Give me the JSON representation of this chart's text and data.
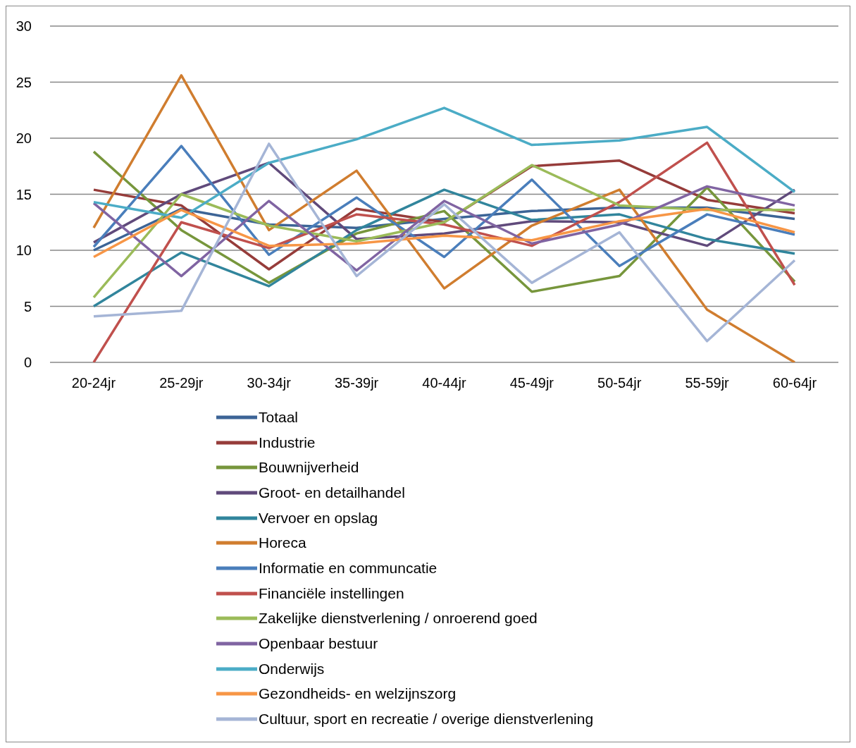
{
  "chart_data": {
    "type": "line",
    "categories": [
      "20-24jr",
      "25-29jr",
      "30-34jr",
      "35-39jr",
      "40-44jr",
      "45-49jr",
      "50-54jr",
      "55-59jr",
      "60-64jr"
    ],
    "series": [
      {
        "name": "Totaal",
        "color": "#3c6496",
        "values": [
          10,
          13.7,
          12.3,
          12,
          12.8,
          13.5,
          13.8,
          13.8,
          12.8
        ]
      },
      {
        "name": "Industrie",
        "color": "#963c3a",
        "values": [
          15.4,
          14,
          8.3,
          13.7,
          12.5,
          17.5,
          18,
          14.5,
          13.3
        ]
      },
      {
        "name": "Bouwnijverheid",
        "color": "#77963c",
        "values": [
          18.8,
          11.8,
          7.1,
          11.5,
          13.5,
          6.3,
          7.7,
          15.6,
          7.2
        ]
      },
      {
        "name": "Groot- en detailhandel",
        "color": "#604a7b",
        "values": [
          10.7,
          15,
          17.8,
          11,
          11.5,
          12.6,
          12.5,
          10.4,
          15.4
        ]
      },
      {
        "name": "Vervoer en opslag",
        "color": "#31859c",
        "values": [
          5,
          9.8,
          6.8,
          11.8,
          15.4,
          12.7,
          13.2,
          11,
          9.7
        ]
      },
      {
        "name": "Horeca",
        "color": "#d07d2f",
        "values": [
          12,
          25.6,
          11.8,
          17.1,
          6.6,
          12.2,
          15.4,
          4.7,
          0
        ]
      },
      {
        "name": "Informatie en communcatie",
        "color": "#4a7ebb",
        "values": [
          10.3,
          19.3,
          9.6,
          14.7,
          9.4,
          16.3,
          8.6,
          13.2,
          11.4
        ]
      },
      {
        "name": "Financiële instellingen",
        "color": "#c0504d",
        "values": [
          0,
          12.5,
          10.2,
          13.2,
          12.3,
          10.4,
          14.3,
          19.6,
          6.9
        ]
      },
      {
        "name": "Zakelijke dienstverlening / onroerend goed",
        "color": "#9bbb59",
        "values": [
          5.8,
          15,
          12.2,
          10.8,
          12.5,
          17.6,
          14,
          13.6,
          13.6
        ]
      },
      {
        "name": "Openbaar bestuur",
        "color": "#8064a2",
        "values": [
          14.2,
          7.7,
          14.4,
          8.2,
          14.4,
          10.6,
          12.3,
          15.7,
          14
        ]
      },
      {
        "name": "Onderwijs",
        "color": "#4bacc6",
        "values": [
          14.3,
          12.9,
          17.8,
          19.9,
          22.7,
          19.4,
          19.8,
          21,
          15.2
        ]
      },
      {
        "name": "Gezondheids- en welzijnszorg",
        "color": "#f79646",
        "values": [
          9.4,
          13.6,
          10.4,
          10.6,
          11.3,
          10.9,
          12.6,
          13.7,
          11.6
        ]
      },
      {
        "name": "Cultuur, sport en recreatie / overige dienstverlening",
        "color": "#a5b5d6",
        "values": [
          4.1,
          4.6,
          19.5,
          7.7,
          14.1,
          7.1,
          11.6,
          1.9,
          9.1
        ]
      }
    ],
    "ylim": [
      0,
      30
    ],
    "yticks": [
      0,
      5,
      10,
      15,
      20,
      25,
      30
    ],
    "grid": "y",
    "legend": "bottom",
    "marker": "none",
    "line_style": "solid"
  }
}
